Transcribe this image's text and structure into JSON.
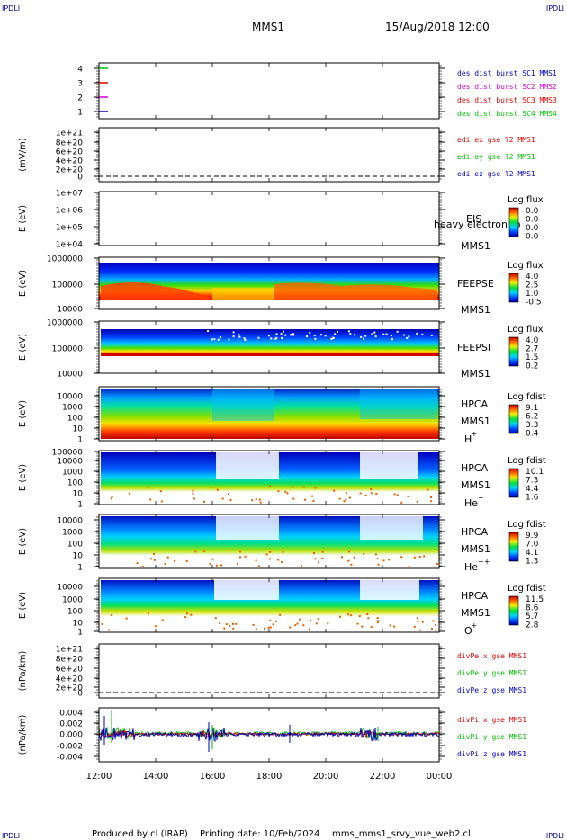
{
  "header": {
    "corner_tl": "IPDLI",
    "corner_tr": "IPDLI",
    "corner_bl": "IPDLI",
    "corner_br": "IPDLI",
    "title": "MMS1",
    "datetime": "15/Aug/2018 12:00"
  },
  "footer": {
    "produced_by": "Produced by cl (IRAP)",
    "printing_date": "Printing date: 10/Feb/2024",
    "file": "mms_mms1_srvy_vue_web2.cl"
  },
  "colors": {
    "red": "#e00000",
    "green": "#00c000",
    "blue": "#0000c0",
    "magenta": "#d000d0"
  },
  "chart_data": [
    {
      "type": "line",
      "id": "burst",
      "ylim": [
        0.5,
        4.5
      ],
      "ticks": [
        "1",
        "2",
        "3",
        "4"
      ],
      "series": [
        {
          "name": "des dist burst SC1 MMS1",
          "color": "#0000c0"
        },
        {
          "name": "des dist burst SC2 MMS2",
          "color": "#d000d0"
        },
        {
          "name": "des dist burst SC3 MMS3",
          "color": "#e00000"
        },
        {
          "name": "des dist burst SC4 MMS4",
          "color": "#00c000"
        }
      ]
    },
    {
      "type": "line",
      "id": "edi",
      "ylabel": "(mV/m)",
      "ticks": [
        "1e+21",
        "8e+20",
        "6e+20",
        "4e+20",
        "2e+20",
        "0"
      ],
      "series": [
        {
          "name": "edi ex gse l2 MMS1",
          "color": "#e00000"
        },
        {
          "name": "edi ey gse l2 MMS1",
          "color": "#00c000"
        },
        {
          "name": "edi ez gse l2 MMS1",
          "color": "#0000c0"
        }
      ]
    },
    {
      "type": "heatmap",
      "id": "eis",
      "ylabel": "E (eV)",
      "ticks": [
        "1e+07",
        "1e+06",
        "1e+05",
        "1e+04"
      ],
      "labels": [
        "EIS",
        "MMS1"
      ],
      "overlay_text": "heavy electron to",
      "colorbar": {
        "title": "Log flux",
        "ticks": [
          "0.0",
          "0.0",
          "0.0",
          "0.0"
        ]
      }
    },
    {
      "type": "heatmap",
      "id": "feepse",
      "ylabel": "E (eV)",
      "ticks": [
        "1000000",
        "100000",
        "10000"
      ],
      "labels": [
        "FEEPSE",
        "MMS1"
      ],
      "colorbar": {
        "title": "Log flux",
        "ticks": [
          "4.0",
          "2.5",
          "1.0",
          "-0.5"
        ]
      }
    },
    {
      "type": "heatmap",
      "id": "feepsi",
      "ylabel": "E (eV)",
      "ticks": [
        "1000000",
        "100000",
        "10000"
      ],
      "labels": [
        "FEEPSI",
        "MMS1"
      ],
      "colorbar": {
        "title": "Log flux",
        "ticks": [
          "4.0",
          "2.7",
          "1.5",
          "0.2"
        ]
      }
    },
    {
      "type": "heatmap",
      "id": "hpca_h",
      "ylabel": "E (eV)",
      "ticks": [
        "10000",
        "1000",
        "100",
        "10",
        "1"
      ],
      "labels": [
        "HPCA",
        "MMS1"
      ],
      "species": "H",
      "charge": "+",
      "colorbar": {
        "title": "Log fdist",
        "ticks": [
          "9.1",
          "6.2",
          "3.3",
          "0.4"
        ]
      }
    },
    {
      "type": "heatmap",
      "id": "hpca_he",
      "ylabel": "E (eV)",
      "ticks": [
        "100000",
        "10000",
        "1000",
        "100",
        "10",
        "1"
      ],
      "labels": [
        "HPCA",
        "MMS1"
      ],
      "species": "He",
      "charge": "+",
      "colorbar": {
        "title": "Log fdist",
        "ticks": [
          "10.1",
          "7.3",
          "4.4",
          "1.6"
        ]
      }
    },
    {
      "type": "heatmap",
      "id": "hpca_hepp",
      "ylabel": "E (eV)",
      "ticks": [
        "10000",
        "1000",
        "100",
        "10",
        "1"
      ],
      "labels": [
        "HPCA",
        "MMS1"
      ],
      "species": "He",
      "charge": "++",
      "colorbar": {
        "title": "Log fdist",
        "ticks": [
          "9.9",
          "7.0",
          "4.1",
          "1.3"
        ]
      }
    },
    {
      "type": "heatmap",
      "id": "hpca_o",
      "ylabel": "E (eV)",
      "ticks": [
        "10000",
        "1000",
        "100",
        "10",
        "1"
      ],
      "labels": [
        "HPCA",
        "MMS1"
      ],
      "species": "O",
      "charge": "+",
      "colorbar": {
        "title": "Log fdist",
        "ticks": [
          "11.5",
          "8.6",
          "5.7",
          "2.8"
        ]
      }
    },
    {
      "type": "line",
      "id": "divpe",
      "ylabel": "(nPa/km)",
      "ticks": [
        "1e+21",
        "8e+20",
        "6e+20",
        "4e+20",
        "2e+20",
        "0"
      ],
      "series": [
        {
          "name": "divPe x gse MMS1",
          "color": "#e00000"
        },
        {
          "name": "divPe y gse MMS1",
          "color": "#00c000"
        },
        {
          "name": "divPe z gse MMS1",
          "color": "#0000c0"
        }
      ]
    },
    {
      "type": "line",
      "id": "divpi",
      "ylabel": "(nPa/km)",
      "ticks": [
        "0.004",
        "0.002",
        "0.000",
        "-0.002",
        "-0.004"
      ],
      "ylim": [
        -0.005,
        0.005
      ],
      "series": [
        {
          "name": "divPi x gse MMS1",
          "color": "#e00000"
        },
        {
          "name": "divPi y gse MMS1",
          "color": "#00c000"
        },
        {
          "name": "divPi z gse MMS1",
          "color": "#0000c0"
        }
      ]
    }
  ],
  "xaxis": {
    "ticks": [
      "12:00",
      "14:00",
      "16:00",
      "18:00",
      "20:00",
      "22:00",
      "00:00"
    ]
  }
}
